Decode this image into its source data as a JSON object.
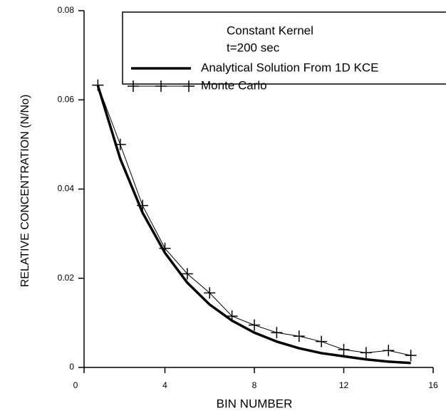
{
  "chart_data": {
    "type": "line",
    "x_label": "BIN NUMBER",
    "y_label": "RELATIVE  CONCENTRATION (N/No)",
    "annotations": [
      "Constant Kernel",
      "t=200 sec"
    ],
    "x": [
      1,
      2,
      3,
      4,
      5,
      6,
      7,
      8,
      9,
      10,
      11,
      12,
      13,
      14,
      15
    ],
    "series": [
      {
        "name": "Analytical Solution From 1D KCE",
        "color": "#000000",
        "marker": "none",
        "values": [
          0.0632,
          0.0468,
          0.0347,
          0.0257,
          0.019,
          0.0141,
          0.0105,
          0.0078,
          0.0058,
          0.0043,
          0.0032,
          0.0025,
          0.0018,
          0.0013,
          0.001
        ]
      },
      {
        "name": "Monte Carlo",
        "color": "#000000",
        "marker": "plus",
        "values": [
          0.0633,
          0.05,
          0.0363,
          0.0267,
          0.021,
          0.0167,
          0.0115,
          0.0095,
          0.0078,
          0.007,
          0.0058,
          0.004,
          0.0033,
          0.0038,
          0.0027
        ]
      }
    ],
    "xlim": [
      0,
      16
    ],
    "xticks": [
      0,
      4,
      8,
      12,
      16
    ],
    "ylim": [
      0,
      0.08
    ],
    "yticks": [
      0,
      0.02,
      0.04,
      0.06,
      0.08
    ],
    "grid": false,
    "legend": "upper right"
  }
}
